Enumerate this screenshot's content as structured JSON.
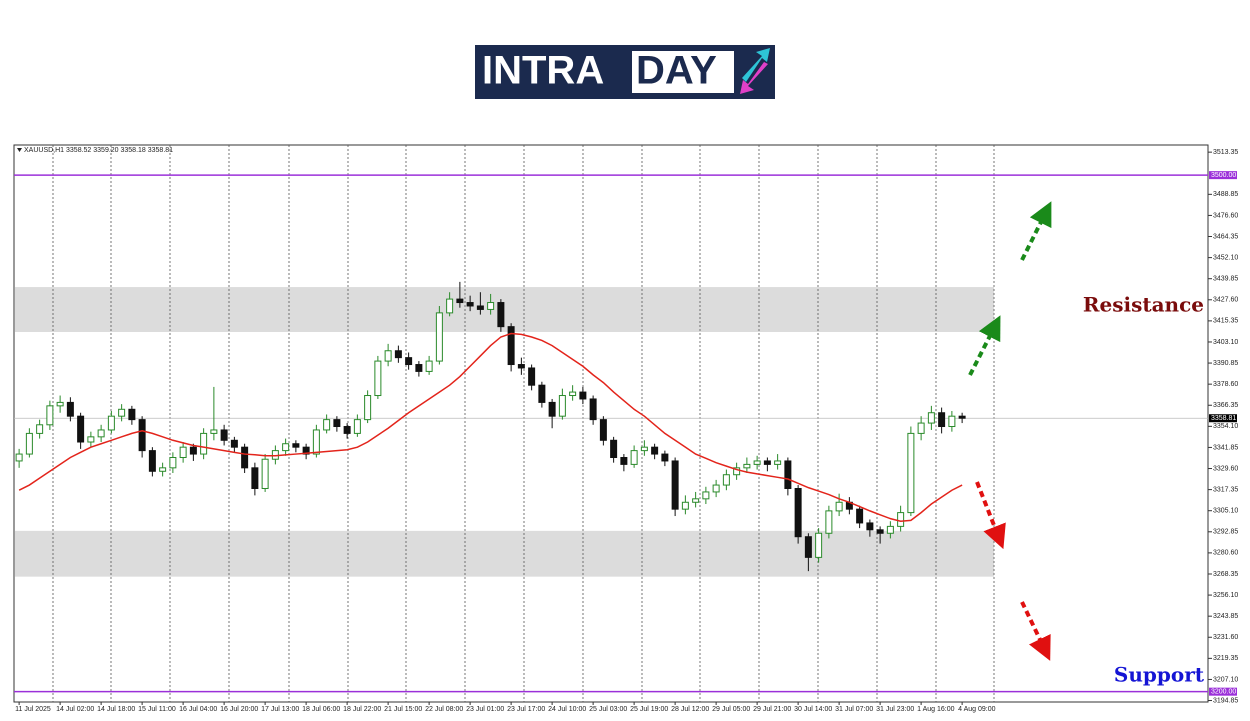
{
  "logo": {
    "part1": "INTRA",
    "part2": "DAY"
  },
  "chart_data": {
    "type": "candlestick",
    "header": "XAUUSD,H1  3358.52 3359.20 3358.18 3358.81",
    "categories": [
      "11 Jul 2025",
      null,
      null,
      null,
      "14 Jul 02:00",
      null,
      null,
      null,
      "14 Jul 18:00",
      null,
      null,
      null,
      "15 Jul 11:00",
      null,
      null,
      null,
      "16 Jul 04:00",
      null,
      null,
      null,
      "16 Jul 20:00",
      null,
      null,
      null,
      "17 Jul 13:00",
      null,
      null,
      null,
      "18 Jul 06:00",
      null,
      null,
      null,
      "18 Jul 22:00",
      null,
      null,
      null,
      "21 Jul 15:00",
      null,
      null,
      null,
      "22 Jul 08:00",
      null,
      null,
      null,
      "23 Jul 01:00",
      null,
      null,
      null,
      "23 Jul 17:00",
      null,
      null,
      null,
      "24 Jul 10:00",
      null,
      null,
      null,
      "25 Jul 03:00",
      null,
      null,
      null,
      "25 Jul 19:00",
      null,
      null,
      null,
      "28 Jul 12:00",
      null,
      null,
      null,
      "29 Jul 05:00",
      null,
      null,
      null,
      "29 Jul 21:00",
      null,
      null,
      null,
      "30 Jul 14:00",
      null,
      null,
      null,
      "31 Jul 07:00",
      null,
      null,
      null,
      "31 Jul 23:00",
      null,
      null,
      null,
      "1 Aug 16:00",
      null,
      null,
      null,
      "4 Aug 09:00"
    ],
    "open": [
      3334,
      3338,
      3350,
      3355,
      3366,
      3368,
      3360,
      3345,
      3348,
      3352,
      3360,
      3364,
      3358,
      3340,
      3328,
      3330,
      3336,
      3342,
      3338,
      3350,
      3352,
      3346,
      3342,
      3330,
      3318,
      3335,
      3340,
      3344,
      3342,
      3338,
      3352,
      3358,
      3354,
      3350,
      3358,
      3372,
      3392,
      3398,
      3394,
      3390,
      3386,
      3392,
      3420,
      3428,
      3426,
      3424,
      3422,
      3426,
      3412,
      3390,
      3388,
      3378,
      3368,
      3360,
      3372,
      3374,
      3370,
      3358,
      3346,
      3336,
      3332,
      3340,
      3342,
      3338,
      3334,
      3306,
      3310,
      3312,
      3316,
      3320,
      3326,
      3330,
      3332,
      3334,
      3332,
      3334,
      3318,
      3290,
      3278,
      3292,
      3305,
      3310,
      3306,
      3298,
      3294,
      3292,
      3296,
      3304,
      3350,
      3356,
      3362,
      3354,
      3360
    ],
    "high": [
      3341,
      3353,
      3358,
      3369,
      3372,
      3371,
      3362,
      3351,
      3355,
      3363,
      3367,
      3366,
      3360,
      3342,
      3333,
      3339,
      3345,
      3344,
      3353,
      3377,
      3355,
      3348,
      3344,
      3333,
      3338,
      3343,
      3347,
      3346,
      3344,
      3355,
      3361,
      3360,
      3356,
      3361,
      3375,
      3395,
      3402,
      3401,
      3397,
      3392,
      3395,
      3424,
      3432,
      3438,
      3430,
      3432,
      3431,
      3428,
      3414,
      3394,
      3390,
      3380,
      3370,
      3376,
      3378,
      3377,
      3372,
      3360,
      3348,
      3338,
      3343,
      3346,
      3344,
      3340,
      3336,
      3314,
      3316,
      3319,
      3323,
      3329,
      3333,
      3336,
      3337,
      3336,
      3338,
      3336,
      3320,
      3292,
      3295,
      3308,
      3315,
      3313,
      3308,
      3300,
      3296,
      3299,
      3308,
      3354,
      3360,
      3366,
      3365,
      3363,
      3362
    ],
    "low": [
      3330,
      3336,
      3347,
      3352,
      3362,
      3357,
      3341,
      3342,
      3345,
      3350,
      3357,
      3355,
      3336,
      3325,
      3325,
      3327,
      3333,
      3334,
      3335,
      3346,
      3343,
      3339,
      3327,
      3314,
      3316,
      3332,
      3337,
      3339,
      3335,
      3336,
      3350,
      3351,
      3347,
      3348,
      3356,
      3370,
      3389,
      3391,
      3387,
      3383,
      3384,
      3390,
      3418,
      3423,
      3421,
      3419,
      3419,
      3409,
      3386,
      3384,
      3375,
      3365,
      3353,
      3358,
      3369,
      3367,
      3355,
      3343,
      3333,
      3328,
      3330,
      3337,
      3335,
      3331,
      3302,
      3303,
      3307,
      3309,
      3313,
      3317,
      3323,
      3327,
      3329,
      3328,
      3329,
      3314,
      3286,
      3270,
      3275,
      3289,
      3302,
      3303,
      3295,
      3290,
      3286,
      3289,
      3293,
      3302,
      3346,
      3352,
      3350,
      3351,
      3356
    ],
    "close": [
      3338,
      3350,
      3355,
      3366,
      3368,
      3360,
      3345,
      3348,
      3352,
      3360,
      3364,
      3358,
      3340,
      3328,
      3330,
      3336,
      3342,
      3338,
      3350,
      3352,
      3346,
      3342,
      3330,
      3318,
      3335,
      3340,
      3344,
      3342,
      3338,
      3352,
      3358,
      3354,
      3350,
      3358,
      3372,
      3392,
      3398,
      3394,
      3390,
      3386,
      3392,
      3420,
      3428,
      3426,
      3424,
      3422,
      3426,
      3412,
      3390,
      3388,
      3378,
      3368,
      3360,
      3372,
      3374,
      3370,
      3358,
      3346,
      3336,
      3332,
      3340,
      3342,
      3338,
      3334,
      3306,
      3310,
      3312,
      3316,
      3320,
      3326,
      3330,
      3332,
      3334,
      3332,
      3334,
      3318,
      3290,
      3278,
      3292,
      3305,
      3310,
      3306,
      3298,
      3294,
      3292,
      3296,
      3304,
      3350,
      3356,
      3362,
      3354,
      3360,
      3358.81
    ],
    "up_color": "#2a8a2a",
    "down_color": "#111111",
    "moving_average": {
      "color": "#e3241b",
      "values": [
        3317,
        3320,
        3324,
        3328,
        3332,
        3336,
        3339,
        3342,
        3344,
        3346,
        3348,
        3350,
        3351.5,
        3350,
        3348,
        3346,
        3344.5,
        3343,
        3342,
        3341,
        3340,
        3339,
        3338,
        3337.6,
        3337,
        3337,
        3337.5,
        3338,
        3338.5,
        3339,
        3339.5,
        3340,
        3340.5,
        3342,
        3345,
        3349,
        3353,
        3357.5,
        3362,
        3366,
        3370,
        3374,
        3378,
        3383,
        3389,
        3395,
        3401,
        3406,
        3408,
        3407.5,
        3406,
        3404,
        3401,
        3397,
        3393,
        3389,
        3384,
        3379.5,
        3374,
        3369,
        3364,
        3360,
        3355,
        3350,
        3346,
        3342,
        3338,
        3335.5,
        3333,
        3331,
        3329,
        3327.5,
        3326.5,
        3325.5,
        3324.5,
        3323.5,
        3321,
        3318.5,
        3316.5,
        3314.5,
        3312,
        3310,
        3307.5,
        3305,
        3302.7,
        3300.5,
        3299,
        3299.5,
        3304,
        3309,
        3313,
        3317,
        3320
      ]
    },
    "zones": [
      {
        "from": 3408.9,
        "to": 3435
      },
      {
        "from": 3266.8,
        "to": 3293.4
      }
    ],
    "zone_color": "#dcdcdc",
    "hlines": [
      {
        "value": 3500,
        "label": "3500.00"
      },
      {
        "value": 3200,
        "label": "3200.00"
      }
    ],
    "hline_color": "#9b30d9",
    "ylim": [
      3194,
      3517.5
    ],
    "yticks": [
      3513.35,
      3488.85,
      {
        "value": 3476.6,
        "label": "3476.60"
      },
      3464.35,
      {
        "value": 3452.1,
        "label": "3452.10"
      },
      3439.85,
      {
        "value": 3427.6,
        "label": "3427.60"
      },
      3415.35,
      {
        "value": 3403.1,
        "label": "3403.10"
      },
      3390.85,
      {
        "value": 3378.6,
        "label": "3378.60"
      },
      3366.35,
      {
        "value": 3354.1,
        "label": "3354.10"
      },
      3341.85,
      {
        "value": 3329.6,
        "label": "3329.60"
      },
      3317.35,
      {
        "value": 3305.1,
        "label": "3305.10"
      },
      3292.85,
      {
        "value": 3280.6,
        "label": "3280.60"
      },
      3268.35,
      {
        "value": 3256.1,
        "label": "3256.10"
      },
      3243.85,
      {
        "value": 3231.6,
        "label": "3231.60"
      },
      3219.35,
      {
        "value": 3207.1,
        "label": "3207.10"
      },
      3194.85
    ],
    "annotations": [
      {
        "text": "Resistance",
        "color": "#7a0c0c"
      },
      {
        "text": "Support",
        "color": "#1414d4"
      }
    ]
  }
}
